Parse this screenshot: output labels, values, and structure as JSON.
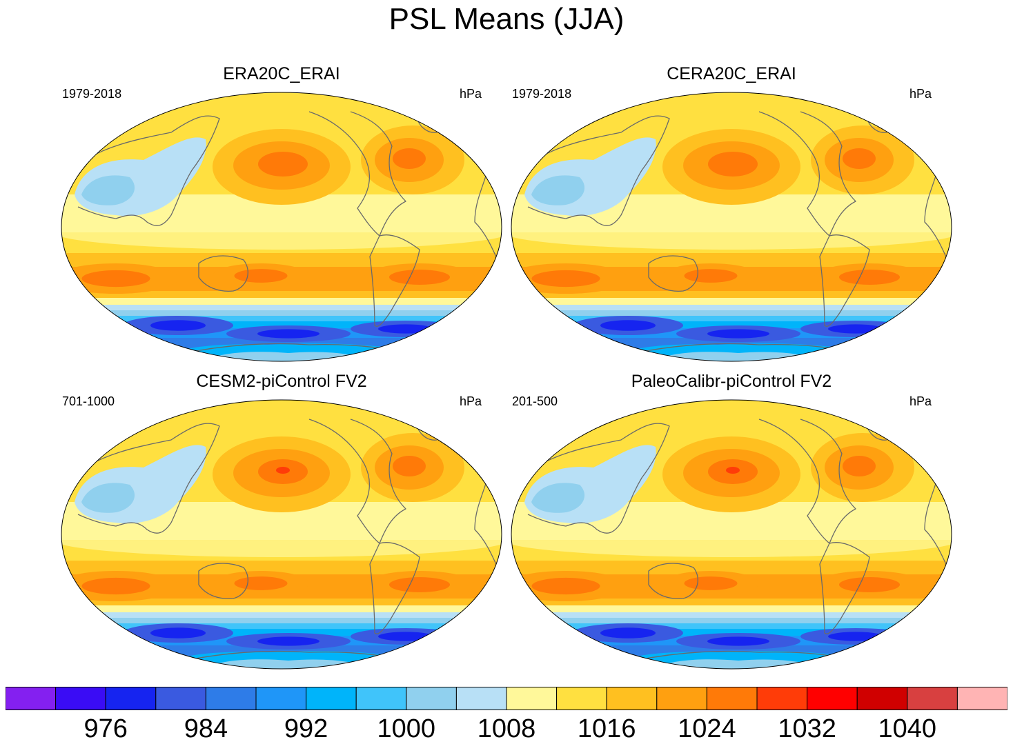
{
  "title": "PSL Means (JJA)",
  "panels": [
    {
      "title": "ERA20C_ERAI",
      "period": "1979-2018",
      "units": "hPa"
    },
    {
      "title": "CERA20C_ERAI",
      "period": "1979-2018",
      "units": "hPa"
    },
    {
      "title": "CESM2-piControl FV2",
      "period": "701-1000",
      "units": "hPa"
    },
    {
      "title": "PaleoCalibr-piControl FV2",
      "period": "201-500",
      "units": "hPa"
    }
  ],
  "colorbar": {
    "labels": [
      "976",
      "984",
      "992",
      "1000",
      "1008",
      "1016",
      "1024",
      "1032",
      "1040"
    ],
    "colors": [
      "#8420f0",
      "#3a0cf5",
      "#1624f0",
      "#3a5ae0",
      "#2e7ce8",
      "#1f96f8",
      "#00b4fa",
      "#40c4fa",
      "#90d0ee",
      "#b8e0f6",
      "#fff89a",
      "#ffe040",
      "#ffc020",
      "#ffa010",
      "#ff7a08",
      "#ff3c08",
      "#ff0000",
      "#d00000",
      "#d84040",
      "#ffb4b4"
    ]
  }
}
